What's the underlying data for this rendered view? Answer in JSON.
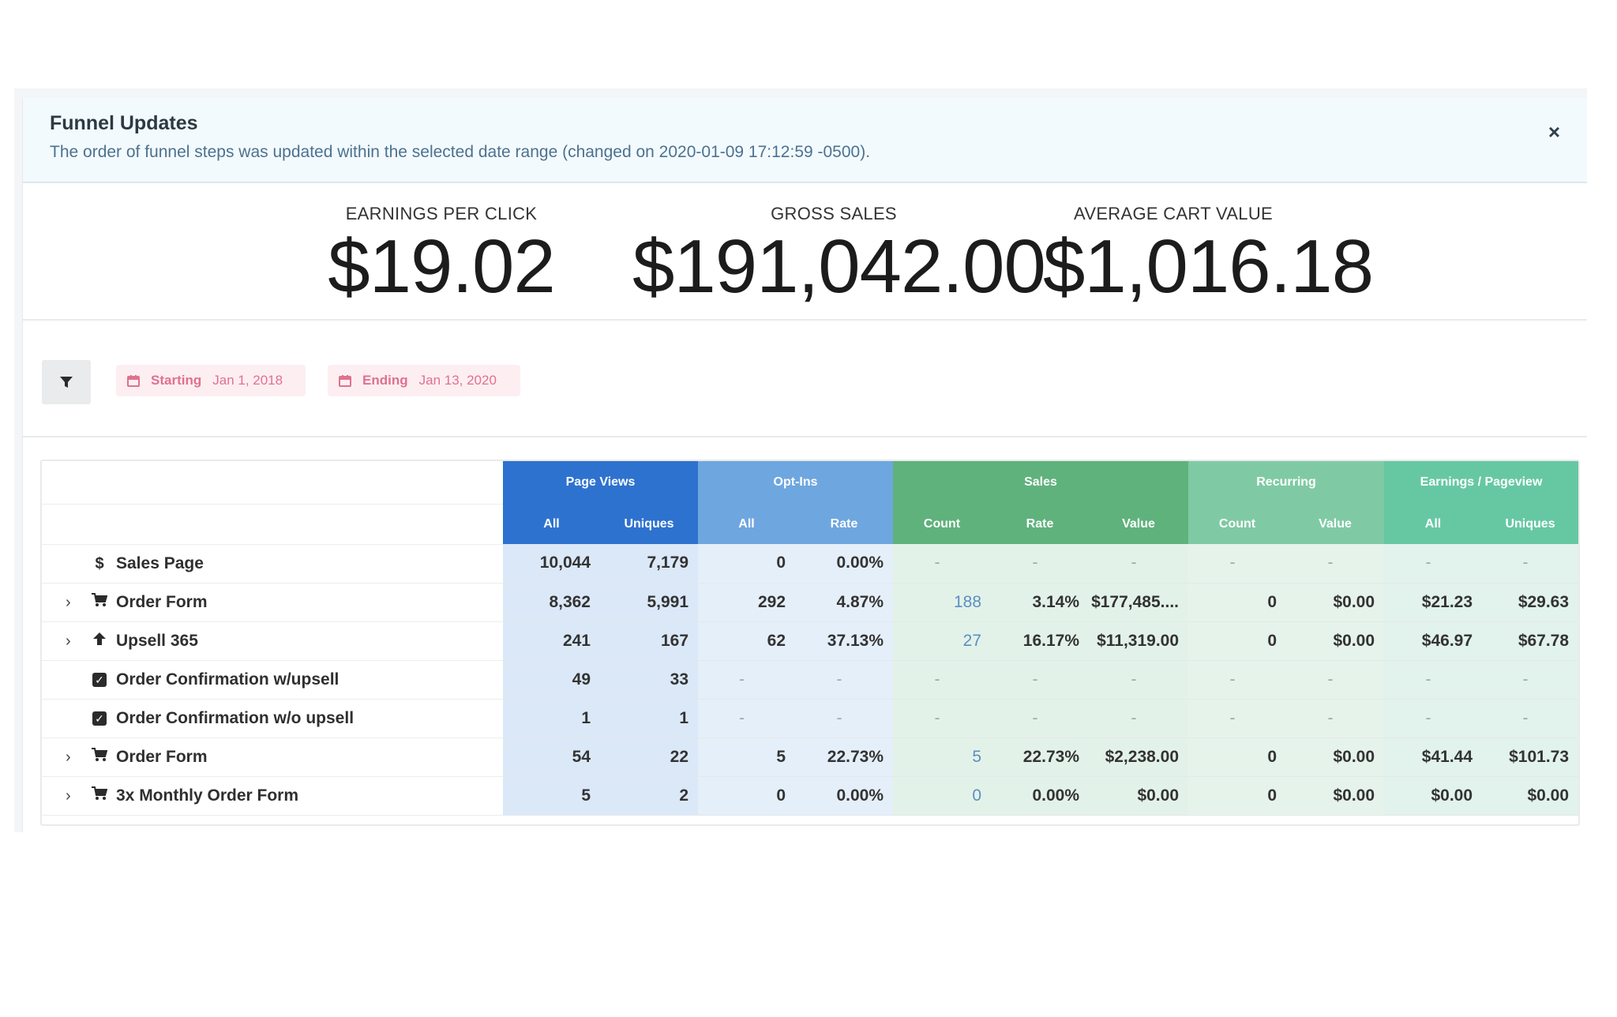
{
  "alert": {
    "title": "Funnel Updates",
    "text": "The order of funnel steps was updated within the selected date range (changed on 2020-01-09 17:12:59 -0500).",
    "close": "×"
  },
  "stats": {
    "epc_label": "EARNINGS PER CLICK",
    "epc_value": "$19.02",
    "gross_label": "GROSS SALES",
    "gross_value": "$191,042.00",
    "acv_label": "AVERAGE CART VALUE",
    "acv_value": "$1,016.18"
  },
  "filters": {
    "start_label": "Starting",
    "start_value": "Jan 1, 2018",
    "end_label": "Ending",
    "end_value": "Jan 13, 2020"
  },
  "table": {
    "groups": [
      "Page Views",
      "Opt-Ins",
      "Sales",
      "Recurring",
      "Earnings / Pageview"
    ],
    "subheaders": [
      "All",
      "Uniques",
      "All",
      "Rate",
      "Count",
      "Rate",
      "Value",
      "Count",
      "Value",
      "All",
      "Uniques"
    ],
    "rows": [
      {
        "icon": "$",
        "expand": "",
        "name": "Sales Page",
        "cells": [
          "10,044",
          "7,179",
          "0",
          "0.00%",
          "-",
          "-",
          "-",
          "-",
          "-",
          "-",
          "-"
        ]
      },
      {
        "icon": "cart",
        "expand": "›",
        "name": "Order Form",
        "cells": [
          "8,362",
          "5,991",
          "292",
          "4.87%",
          "188",
          "3.14%",
          "$177,485....",
          "0",
          "$0.00",
          "$21.23",
          "$29.63"
        ]
      },
      {
        "icon": "up",
        "expand": "›",
        "name": "Upsell 365",
        "cells": [
          "241",
          "167",
          "62",
          "37.13%",
          "27",
          "16.17%",
          "$11,319.00",
          "0",
          "$0.00",
          "$46.97",
          "$67.78"
        ]
      },
      {
        "icon": "check",
        "expand": "",
        "name": "Order Confirmation w/upsell",
        "cells": [
          "49",
          "33",
          "-",
          "-",
          "-",
          "-",
          "-",
          "-",
          "-",
          "-",
          "-"
        ]
      },
      {
        "icon": "check",
        "expand": "",
        "name": "Order Confirmation w/o upsell",
        "cells": [
          "1",
          "1",
          "-",
          "-",
          "-",
          "-",
          "-",
          "-",
          "-",
          "-",
          "-"
        ]
      },
      {
        "icon": "cart",
        "expand": "›",
        "name": "Order Form",
        "cells": [
          "54",
          "22",
          "5",
          "22.73%",
          "5",
          "22.73%",
          "$2,238.00",
          "0",
          "$0.00",
          "$41.44",
          "$101.73"
        ]
      },
      {
        "icon": "cart",
        "expand": "›",
        "name": "3x Monthly Order Form",
        "cells": [
          "5",
          "2",
          "0",
          "0.00%",
          "0",
          "0.00%",
          "$0.00",
          "0",
          "$0.00",
          "$0.00",
          "$0.00"
        ]
      }
    ]
  },
  "colors": {
    "page_views": "#2e72cf",
    "opt_ins": "#6ea6e0",
    "sales": "#5fb27c",
    "recurring": "#7fcaa4",
    "earnings": "#66c8a2",
    "date_chip": "#e0718e"
  }
}
